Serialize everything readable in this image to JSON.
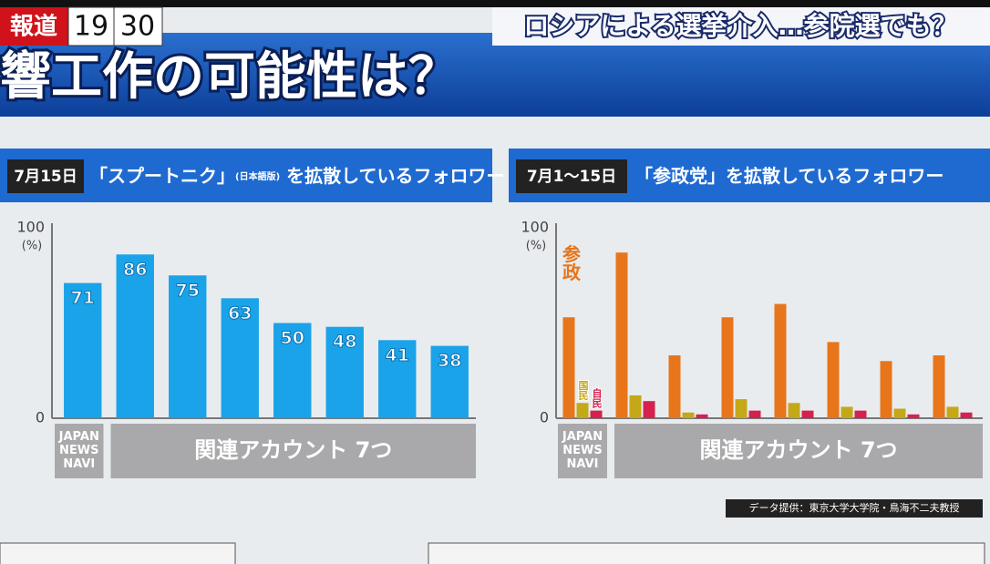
{
  "header": {
    "logo": "報道",
    "time_hour": "19",
    "time_minute": "30",
    "caption": "ロシアによる選挙介入…参院選でも？",
    "title": "響工作の可能性は？"
  },
  "panels": [
    {
      "date": "7月15日",
      "title_parts": [
        "「スプートニク」",
        "(日本語版)",
        " を拡散しているフォロワー"
      ]
    },
    {
      "date": "7月1～15日",
      "title_parts": [
        "「参政党」を拡散しているフォロワー"
      ]
    }
  ],
  "credit": "データ提供：東京大学大学院・鳥海不二夫教授",
  "chart_data": [
    {
      "type": "bar",
      "y_label": "(%)",
      "categories": [
        "JAPAN\nNEWS\nNAVI",
        null,
        null,
        null,
        null,
        null,
        null,
        null
      ],
      "group_label": "関連アカウント 7つ",
      "values": [
        71,
        86,
        75,
        63,
        50,
        48,
        41,
        38
      ],
      "color": "#1aa3e8",
      "ylim": [
        0,
        100
      ],
      "yticks": [
        0,
        100
      ],
      "grid": false
    },
    {
      "type": "grouped_bar",
      "y_label": "(%)",
      "categories": [
        "JAPAN\nNEWS\nNAVI",
        null,
        null,
        null,
        null,
        null,
        null,
        null
      ],
      "group_label": "関連アカウント 7つ",
      "series": [
        {
          "name": "参政",
          "color": "#e8751a",
          "values": [
            53,
            87,
            33,
            53,
            60,
            40,
            30,
            33
          ]
        },
        {
          "name": "国民",
          "color": "#c4a817",
          "values": [
            8,
            12,
            3,
            10,
            8,
            6,
            5,
            6
          ]
        },
        {
          "name": "自民",
          "color": "#d6204e",
          "values": [
            4,
            9,
            2,
            4,
            4,
            4,
            2,
            3
          ]
        }
      ],
      "ylim": [
        0,
        100
      ],
      "yticks": [
        0,
        100
      ],
      "grid": false
    }
  ]
}
